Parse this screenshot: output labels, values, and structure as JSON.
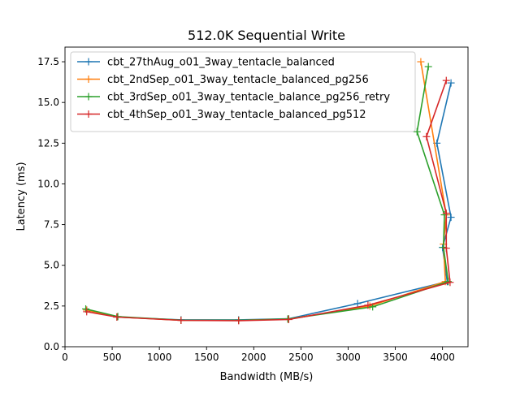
{
  "chart_data": {
    "type": "line",
    "title": "512.0K  Sequential Write",
    "xlabel": "Bandwidth (MB/s)",
    "ylabel": "Latency (ms)",
    "xlim": [
      0,
      4270
    ],
    "ylim": [
      0,
      18.4
    ],
    "xticks": [
      0,
      500,
      1000,
      1500,
      2000,
      2500,
      3000,
      3500,
      4000
    ],
    "xtick_labels": [
      "0",
      "500",
      "1000",
      "1500",
      "2000",
      "2500",
      "3000",
      "3500",
      "4000"
    ],
    "yticks": [
      0.0,
      2.5,
      5.0,
      7.5,
      10.0,
      12.5,
      15.0,
      17.5
    ],
    "ytick_labels": [
      "0.0",
      "2.5",
      "5.0",
      "7.5",
      "10.0",
      "12.5",
      "15.0",
      "17.5"
    ],
    "grid": false,
    "legend_position": "top-left",
    "marker": "plus",
    "series": [
      {
        "name": "cbt_27thAug_o01_3way_tentacle_balanced",
        "color": "#1f77b4",
        "x": [
          230,
          550,
          1230,
          1840,
          2370,
          3100,
          4050,
          4000,
          4090,
          3940,
          4090
        ],
        "y": [
          2.25,
          1.82,
          1.65,
          1.65,
          1.72,
          2.65,
          4.0,
          6.1,
          7.95,
          12.5,
          16.2
        ]
      },
      {
        "name": "cbt_2ndSep_o01_3way_tentacle_balanced_pg256",
        "color": "#ff7f0e",
        "x": [
          230,
          550,
          1230,
          1840,
          2370,
          3230,
          4030,
          4010,
          4040,
          3770
        ],
        "y": [
          2.25,
          1.83,
          1.62,
          1.62,
          1.7,
          2.5,
          4.0,
          6.3,
          8.1,
          17.5
        ]
      },
      {
        "name": "cbt_3rdSep_o01_3way_tentacle_balance_pg256_retry",
        "color": "#2ca02c",
        "x": [
          220,
          560,
          1230,
          1840,
          2360,
          3260,
          4060,
          4010,
          4020,
          3730,
          3850
        ],
        "y": [
          2.32,
          1.85,
          1.63,
          1.62,
          1.7,
          2.45,
          4.0,
          6.1,
          8.1,
          13.2,
          17.2
        ]
      },
      {
        "name": "cbt_4thSep_o01_3way_tentacle_balanced_pg512",
        "color": "#d62728",
        "x": [
          230,
          550,
          1230,
          1840,
          2370,
          3210,
          4080,
          4040,
          4040,
          3830,
          4040
        ],
        "y": [
          2.15,
          1.82,
          1.62,
          1.6,
          1.67,
          2.55,
          3.95,
          6.05,
          8.2,
          12.9,
          16.35
        ]
      }
    ]
  }
}
